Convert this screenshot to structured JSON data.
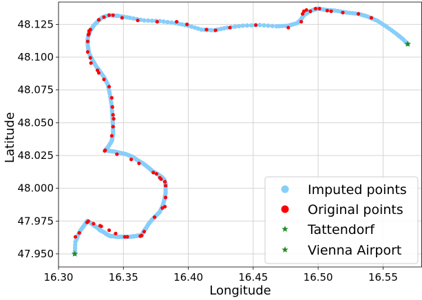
{
  "chart_data": {
    "type": "scatter",
    "xlabel": "Longitude",
    "ylabel": "Latitude",
    "xlim": [
      16.3,
      16.58
    ],
    "ylim": [
      47.94,
      48.142
    ],
    "x_ticks": [
      "16.30",
      "16.35",
      "16.40",
      "16.45",
      "16.50",
      "16.55"
    ],
    "x_tick_values": [
      16.3,
      16.35,
      16.4,
      16.45,
      16.5,
      16.55
    ],
    "y_ticks": [
      "47.950",
      "47.975",
      "48.000",
      "48.025",
      "48.050",
      "48.075",
      "48.100",
      "48.125"
    ],
    "y_tick_values": [
      47.95,
      47.975,
      48.0,
      48.025,
      48.05,
      48.075,
      48.1,
      48.125
    ],
    "grid": true,
    "legend_position": "bottom-right",
    "series": [
      {
        "name": "Imputed points",
        "marker": "circle",
        "color": "#87CEFA",
        "x": [
          16.3125,
          16.313,
          16.315,
          16.317,
          16.32,
          16.322,
          16.325,
          16.3275,
          16.33,
          16.332,
          16.335,
          16.337,
          16.34,
          16.3425,
          16.345,
          16.347,
          16.349,
          16.352,
          16.355,
          16.359,
          16.362,
          16.364,
          16.3655,
          16.367,
          16.3695,
          16.372,
          16.375,
          16.378,
          16.38,
          16.3815,
          16.3825,
          16.3825,
          16.3815,
          16.38,
          16.379,
          16.376,
          16.3725,
          16.369,
          16.365,
          16.3615,
          16.357,
          16.352,
          16.3475,
          16.343,
          16.339,
          16.336,
          16.3385,
          16.341,
          16.342,
          16.342,
          16.3415,
          16.341,
          16.3395,
          16.338,
          16.3355,
          16.332,
          16.329,
          16.326,
          16.3235,
          16.3225,
          16.3225,
          16.3235,
          16.3245,
          16.327,
          16.331,
          16.334,
          16.339,
          16.346,
          16.355,
          16.366,
          16.378,
          16.39,
          16.4,
          16.41,
          16.42,
          16.43,
          16.442,
          16.455,
          16.468,
          16.477,
          16.484,
          16.487,
          16.489,
          16.492,
          16.496,
          16.5,
          16.506,
          16.513,
          16.522,
          16.531,
          16.538,
          16.546,
          16.553,
          16.56,
          16.565,
          16.569
        ],
        "y": [
          47.95,
          47.959,
          47.964,
          47.968,
          47.972,
          47.975,
          47.9735,
          47.9715,
          47.97,
          47.968,
          47.9665,
          47.965,
          47.9635,
          47.9635,
          47.963,
          47.963,
          47.963,
          47.963,
          47.963,
          47.9635,
          47.964,
          47.964,
          47.967,
          47.969,
          47.973,
          47.976,
          47.979,
          47.982,
          47.986,
          47.991,
          47.9965,
          48.003,
          48.0065,
          48.008,
          48.009,
          48.011,
          48.013,
          48.016,
          48.019,
          48.021,
          48.024,
          48.026,
          48.027,
          48.028,
          48.0285,
          48.029,
          48.032,
          48.036,
          48.041,
          48.047,
          48.055,
          48.063,
          48.072,
          48.079,
          48.084,
          48.089,
          48.093,
          48.098,
          48.103,
          48.109,
          48.114,
          48.118,
          48.12,
          48.124,
          48.128,
          48.1305,
          48.132,
          48.1315,
          48.13,
          48.128,
          48.1275,
          48.126,
          48.124,
          48.121,
          48.1205,
          48.1225,
          48.124,
          48.1245,
          48.1235,
          48.124,
          48.126,
          48.129,
          48.132,
          48.134,
          48.136,
          48.137,
          48.136,
          48.1355,
          48.134,
          48.133,
          48.131,
          48.1275,
          48.123,
          48.118,
          48.114,
          48.11
        ]
      },
      {
        "name": "Original points",
        "marker": "circle",
        "color": "#ff0000",
        "x": [
          16.313,
          16.316,
          16.322,
          16.323,
          16.327,
          16.332,
          16.333,
          16.339,
          16.344,
          16.351,
          16.353,
          16.363,
          16.364,
          16.366,
          16.374,
          16.38,
          16.382,
          16.3825,
          16.3825,
          16.382,
          16.379,
          16.378,
          16.3755,
          16.373,
          16.362,
          16.356,
          16.345,
          16.336,
          16.3355,
          16.341,
          16.342,
          16.3425,
          16.342,
          16.3415,
          16.341,
          16.339,
          16.335,
          16.331,
          16.33,
          16.325,
          16.3245,
          16.3225,
          16.3225,
          16.323,
          16.3235,
          16.3235,
          16.3245,
          16.331,
          16.335,
          16.339,
          16.342,
          16.349,
          16.361,
          16.376,
          16.391,
          16.399,
          16.414,
          16.421,
          16.432,
          16.452,
          16.477,
          16.487,
          16.488,
          16.489,
          16.491,
          16.494,
          16.498,
          16.501,
          16.507,
          16.51,
          16.519,
          16.531,
          16.541
        ],
        "y": [
          47.963,
          47.966,
          47.974,
          47.975,
          47.973,
          47.9715,
          47.971,
          47.968,
          47.9655,
          47.963,
          47.963,
          47.9635,
          47.964,
          47.967,
          47.978,
          47.985,
          47.986,
          47.993,
          48.002,
          48.005,
          48.007,
          48.008,
          48.011,
          48.012,
          48.019,
          48.022,
          48.026,
          48.029,
          48.0285,
          48.04,
          48.047,
          48.053,
          48.056,
          48.062,
          48.069,
          48.0775,
          48.083,
          48.088,
          48.09,
          48.0955,
          48.0995,
          48.104,
          48.112,
          48.117,
          48.118,
          48.12,
          48.121,
          48.1285,
          48.1305,
          48.132,
          48.132,
          48.13,
          48.128,
          48.127,
          48.127,
          48.125,
          48.121,
          48.1205,
          48.1225,
          48.1245,
          48.1225,
          48.127,
          48.133,
          48.135,
          48.136,
          48.135,
          48.137,
          48.137,
          48.1355,
          48.135,
          48.134,
          48.133,
          48.13
        ]
      },
      {
        "name": "Tattendorf",
        "marker": "star",
        "color": "#228B22",
        "x": [
          16.3125
        ],
        "y": [
          47.95
        ]
      },
      {
        "name": "Vienna Airport",
        "marker": "star",
        "color": "#228B22",
        "x": [
          16.569
        ],
        "y": [
          48.11
        ]
      }
    ]
  }
}
